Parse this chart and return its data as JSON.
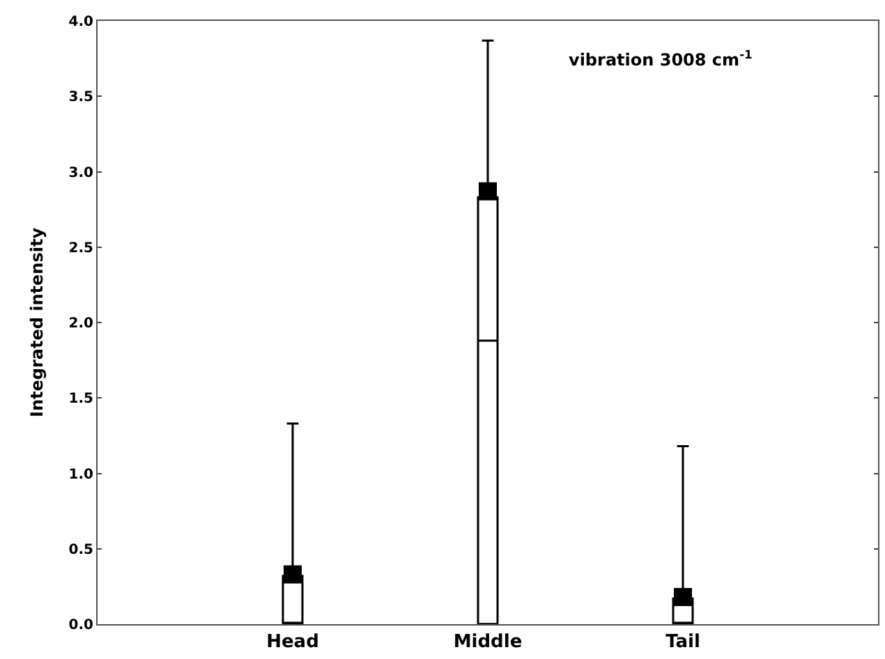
{
  "chart_data": {
    "type": "box",
    "ylabel": "Integrated intensity",
    "categories": [
      "Head",
      "Middle",
      "Tail"
    ],
    "boxes": [
      {
        "low": 0,
        "q1": 0,
        "median": 0,
        "q3": 0.32,
        "high": 1.33,
        "mean": 0.33
      },
      {
        "low": 0,
        "q1": 0,
        "median": 1.88,
        "q3": 2.83,
        "high": 3.87,
        "mean": 2.87
      },
      {
        "low": 0,
        "q1": 0,
        "median": 0,
        "q3": 0.17,
        "high": 1.18,
        "mean": 0.18
      }
    ],
    "color": "#000000",
    "marker": "square",
    "ylim": [
      0,
      4.0
    ],
    "yticks": [
      {
        "value": 0,
        "label": "0.0"
      },
      0.5,
      {
        "value": 1,
        "label": "1.0"
      },
      1.5,
      {
        "value": 2,
        "label": "2.0"
      },
      2.5,
      {
        "value": 3,
        "label": "3.0"
      },
      3.5,
      {
        "value": 4,
        "label": "4.0"
      }
    ],
    "annotations": [
      "vibration 3008 cm$^{-1}$"
    ]
  }
}
